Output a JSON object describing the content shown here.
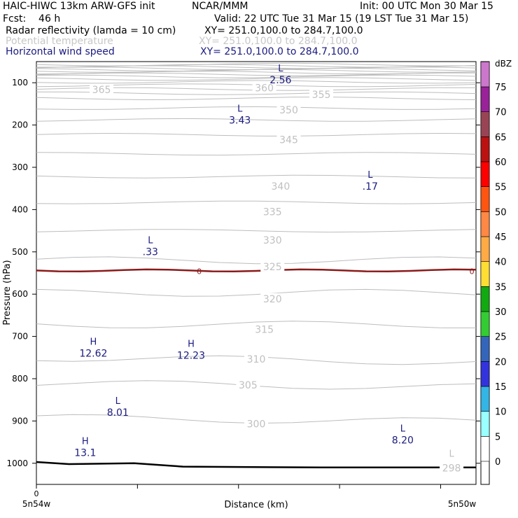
{
  "header": {
    "model": "HAIC-HIWC 13km ARW-GFS init",
    "org": "NCAR/MMM",
    "init": "Init: 00 UTC Mon 30 Mar 15",
    "fcst": "Fcst:    46 h",
    "valid": "Valid: 22 UTC Tue 31 Mar 15 (19 LST Tue 31 Mar 15)",
    "fields": [
      {
        "name": "Radar reflectivity (lamda = 10 cm)",
        "xy": "XY= 251.0,100.0 to 284.7,100.0",
        "color": "#000000"
      },
      {
        "name": "Potential temperature",
        "xy": "XY= 251.0,100.0 to 284.7,100.0",
        "color": "#c8c8c8"
      },
      {
        "name": "Horizontal wind speed",
        "xy": "XY= 251.0,100.0 to 284.7,100.0",
        "color": "#1a1a80"
      }
    ]
  },
  "chart_data": {
    "type": "contour",
    "xlabel": "Distance (km)",
    "ylabel": "Pressure (hPa)",
    "x_start_label": "0",
    "x_left_label": "5n54w",
    "x_right_label": "5n50w",
    "ylim": [
      1050,
      50
    ],
    "y_ticks": [
      "100",
      "200",
      "300",
      "400",
      "500",
      "600",
      "700",
      "800",
      "900",
      "1000"
    ],
    "colorbar": {
      "unit": "dBZ",
      "levels": [
        "0",
        "5",
        "10",
        "15",
        "20",
        "25",
        "30",
        "35",
        "40",
        "45",
        "50",
        "55",
        "60",
        "65",
        "70",
        "75"
      ],
      "colors": [
        "#ffffff",
        "#99ffff",
        "#33b5e5",
        "#3333dd",
        "#3366bb",
        "#33cc33",
        "#11aa11",
        "#ffdd33",
        "#ffaa44",
        "#ff8844",
        "#ff5511",
        "#ff0000",
        "#bb1111",
        "#994455",
        "#992299",
        "#cc77cc"
      ]
    },
    "theta_labels": [
      {
        "text": "365",
        "x_km": 8,
        "p": 116
      },
      {
        "text": "360",
        "x_km": 28,
        "p": 112
      },
      {
        "text": "355",
        "x_km": 35,
        "p": 128
      },
      {
        "text": "350",
        "x_km": 31,
        "p": 164
      },
      {
        "text": "345",
        "x_km": 31,
        "p": 235
      },
      {
        "text": "340",
        "x_km": 30,
        "p": 345
      },
      {
        "text": "335",
        "x_km": 29,
        "p": 405
      },
      {
        "text": "330",
        "x_km": 29,
        "p": 472
      },
      {
        "text": "325",
        "x_km": 29,
        "p": 535
      },
      {
        "text": "320",
        "x_km": 29,
        "p": 611
      },
      {
        "text": "315",
        "x_km": 28,
        "p": 683
      },
      {
        "text": "310",
        "x_km": 27,
        "p": 754
      },
      {
        "text": "305",
        "x_km": 26,
        "p": 815
      },
      {
        "text": "300",
        "x_km": 27,
        "p": 907
      },
      {
        "text": "298",
        "x_km": 51,
        "p": 1011
      }
    ],
    "theta_contours_p": [
      57,
      60,
      63,
      66,
      69,
      72,
      76,
      80,
      85,
      91,
      98,
      106,
      115,
      125,
      137,
      160,
      188,
      223,
      268,
      322,
      383,
      450,
      520,
      597,
      672,
      750,
      810,
      892
    ],
    "wind_extrema": [
      {
        "kind": "L",
        "value": "2.56",
        "x_km": 30,
        "p": 73,
        "color": "navy"
      },
      {
        "kind": "L",
        "value": "3.43",
        "x_km": 25,
        "p": 168,
        "color": "navy"
      },
      {
        "kind": "L",
        "value": ".17",
        "x_km": 41,
        "p": 325,
        "color": "navy"
      },
      {
        "kind": "L",
        "value": ".33",
        "x_km": 14,
        "p": 480,
        "color": "navy"
      },
      {
        "kind": "H",
        "value": "12.62",
        "x_km": 7,
        "p": 720,
        "color": "navy"
      },
      {
        "kind": "H",
        "value": "12.23",
        "x_km": 19,
        "p": 725,
        "color": "navy"
      },
      {
        "kind": "L",
        "value": "8.01",
        "x_km": 10,
        "p": 860,
        "color": "navy"
      },
      {
        "kind": "L",
        "value": "8.20",
        "x_km": 45,
        "p": 925,
        "color": "navy"
      },
      {
        "kind": "H",
        "value": "13.1",
        "x_km": 6,
        "p": 955,
        "color": "navy"
      },
      {
        "kind": "L",
        "value": "",
        "x_km": 51,
        "p": 985,
        "color": "gray"
      }
    ],
    "zero_dbz_line_p": 544,
    "zero_dbz_labels": [
      {
        "text": "0",
        "x_km": 20
      },
      {
        "text": "0",
        "x_km": 53.5
      }
    ]
  }
}
